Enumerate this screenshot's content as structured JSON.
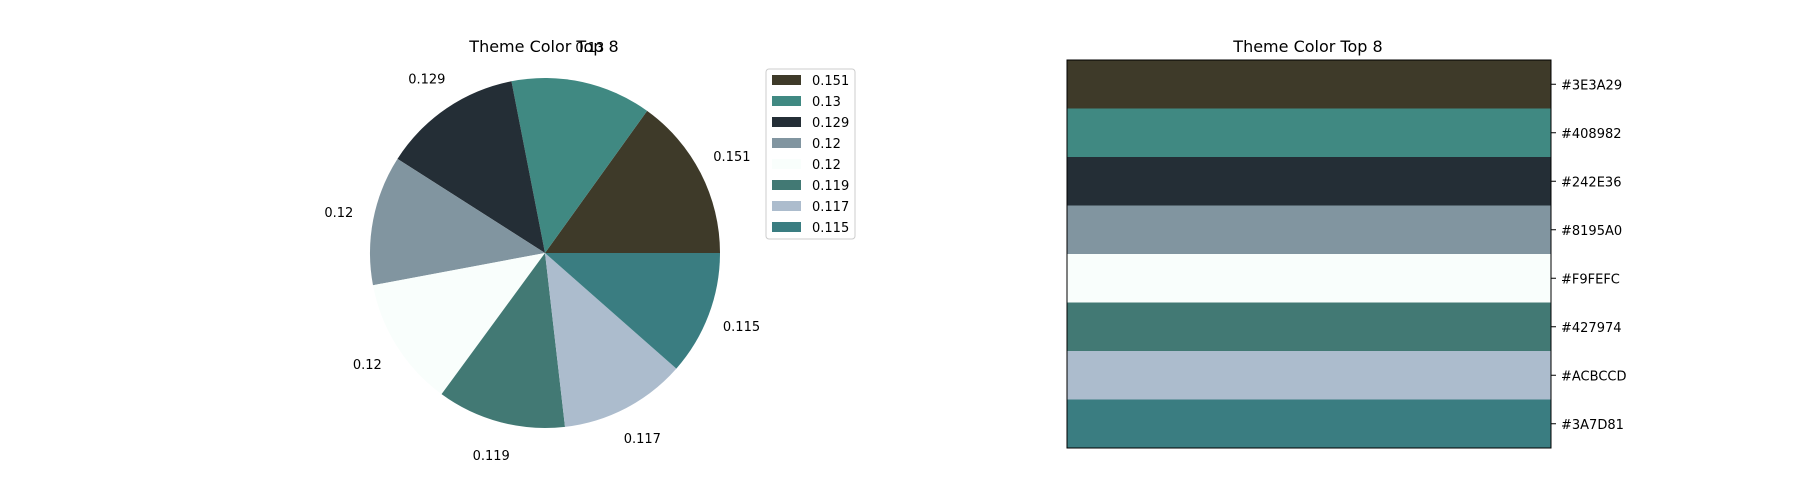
{
  "chart_data": [
    {
      "type": "pie",
      "title": "Theme Color Top 8",
      "values": [
        0.151,
        0.13,
        0.129,
        0.12,
        0.12,
        0.119,
        0.117,
        0.115
      ],
      "labels": [
        "0.151",
        "0.13",
        "0.129",
        "0.12",
        "0.12",
        "0.119",
        "0.117",
        "0.115"
      ],
      "colors": [
        "#3E3A29",
        "#408982",
        "#242E36",
        "#8195A0",
        "#F9FEFC",
        "#427974",
        "#ACBCCD",
        "#3A7D81"
      ],
      "legend": {
        "placement": "upper-right-outside",
        "entries": [
          "0.151",
          "0.13",
          "0.129",
          "0.12",
          "0.12",
          "0.119",
          "0.117",
          "0.115"
        ]
      }
    },
    {
      "type": "bar",
      "title": "Theme Color Top 8",
      "categories": [
        "#3E3A29",
        "#408982",
        "#242E36",
        "#8195A0",
        "#F9FEFC",
        "#427974",
        "#ACBCCD",
        "#3A7D81"
      ],
      "colors": [
        "#3E3A29",
        "#408982",
        "#242E36",
        "#8195A0",
        "#F9FEFC",
        "#427974",
        "#ACBCCD",
        "#3A7D81"
      ],
      "y_tick_side": "right"
    }
  ]
}
